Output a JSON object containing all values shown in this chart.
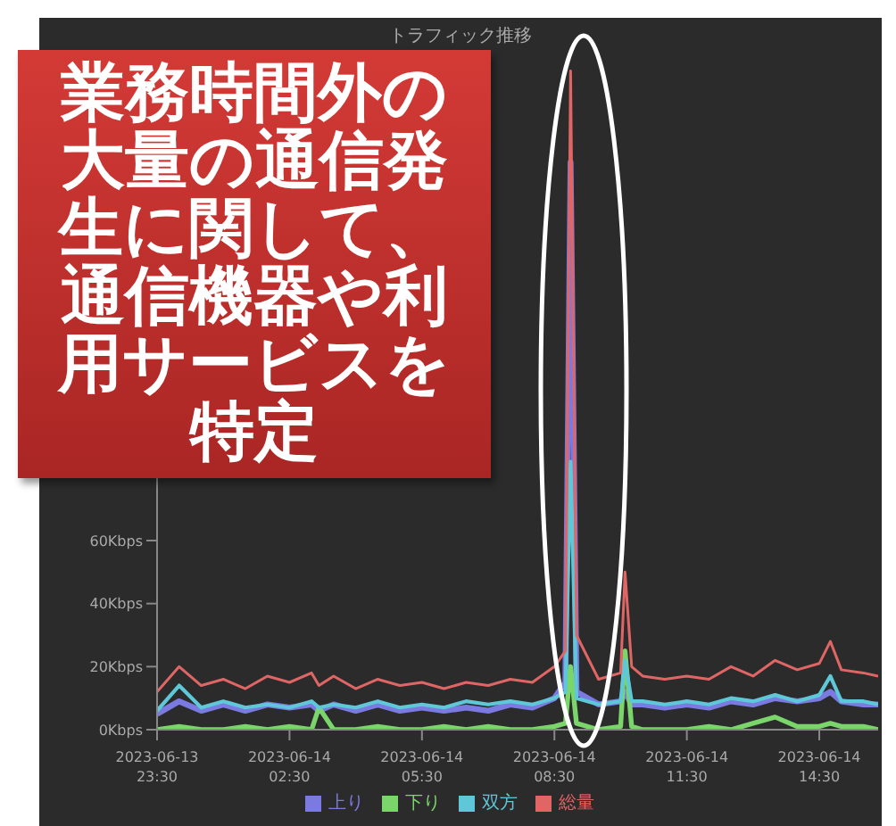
{
  "chart_data": {
    "type": "line",
    "title": "トラフィック推移",
    "x": [
      "2023-06-13T23:30",
      "2023-06-14T00:00",
      "2023-06-14T00:30",
      "2023-06-14T01:00",
      "2023-06-14T01:30",
      "2023-06-14T02:00",
      "2023-06-14T02:30",
      "2023-06-14T03:00",
      "2023-06-14T03:10",
      "2023-06-14T03:30",
      "2023-06-14T04:00",
      "2023-06-14T04:30",
      "2023-06-14T05:00",
      "2023-06-14T05:30",
      "2023-06-14T06:00",
      "2023-06-14T06:30",
      "2023-06-14T07:00",
      "2023-06-14T07:30",
      "2023-06-14T08:00",
      "2023-06-14T08:30",
      "2023-06-14T08:45",
      "2023-06-14T08:52",
      "2023-06-14T09:00",
      "2023-06-14T09:30",
      "2023-06-14T10:00",
      "2023-06-14T10:06",
      "2023-06-14T10:15",
      "2023-06-14T10:30",
      "2023-06-14T11:00",
      "2023-06-14T11:30",
      "2023-06-14T12:00",
      "2023-06-14T12:30",
      "2023-06-14T13:00",
      "2023-06-14T13:30",
      "2023-06-14T14:00",
      "2023-06-14T14:30",
      "2023-06-14T14:45",
      "2023-06-14T15:00",
      "2023-06-14T15:30",
      "2023-06-14T15:50"
    ],
    "series": [
      {
        "name": "上り",
        "color": "#7a7ae0",
        "values": [
          5,
          9,
          6,
          8,
          6,
          8,
          7,
          8,
          6,
          8,
          6,
          8,
          6,
          7,
          6,
          7,
          6,
          8,
          7,
          10,
          15,
          180,
          12,
          8,
          9,
          12,
          8,
          8,
          7,
          8,
          7,
          9,
          8,
          10,
          9,
          10,
          12,
          9,
          8,
          8
        ]
      },
      {
        "name": "下り",
        "color": "#7ad66a",
        "values": [
          0,
          1,
          0,
          0,
          1,
          0,
          1,
          0,
          7,
          0,
          0,
          1,
          0,
          0,
          1,
          0,
          1,
          0,
          0,
          1,
          2,
          20,
          2,
          0,
          1,
          25,
          1,
          0,
          0,
          0,
          1,
          0,
          2,
          4,
          1,
          1,
          2,
          1,
          1,
          0
        ]
      },
      {
        "name": "双方",
        "color": "#5ec8d8",
        "values": [
          6,
          14,
          7,
          9,
          7,
          8,
          7,
          9,
          7,
          8,
          7,
          9,
          7,
          8,
          7,
          9,
          8,
          9,
          8,
          10,
          12,
          85,
          10,
          8,
          9,
          22,
          9,
          9,
          8,
          9,
          8,
          10,
          9,
          11,
          9,
          11,
          17,
          9,
          9,
          8
        ]
      },
      {
        "name": "総量",
        "color": "#e06666",
        "values": [
          12,
          20,
          14,
          16,
          13,
          17,
          15,
          18,
          14,
          17,
          13,
          16,
          14,
          15,
          13,
          15,
          14,
          16,
          15,
          20,
          25,
          209,
          30,
          16,
          18,
          50,
          20,
          17,
          16,
          17,
          16,
          20,
          17,
          22,
          19,
          21,
          28,
          19,
          18,
          17
        ]
      }
    ],
    "xlim": [
      "2023-06-13T23:30",
      "2023-06-14T15:50"
    ],
    "xticks": [
      {
        "value": "2023-06-13T23:30",
        "label": "2023-06-13 23:30"
      },
      {
        "value": "2023-06-14T02:30",
        "label": "2023-06-14 02:30"
      },
      {
        "value": "2023-06-14T05:30",
        "label": "2023-06-14 05:30"
      },
      {
        "value": "2023-06-14T08:30",
        "label": "2023-06-14 08:30"
      },
      {
        "value": "2023-06-14T11:30",
        "label": "2023-06-14 11:30"
      },
      {
        "value": "2023-06-14T14:30",
        "label": "2023-06-14 14:30"
      }
    ],
    "ylim": [
      0,
      210
    ],
    "yticks": [
      {
        "value": 0,
        "label": "0Kbps"
      },
      {
        "value": 20,
        "label": "20Kbps"
      },
      {
        "value": 40,
        "label": "40Kbps"
      },
      {
        "value": 60,
        "label": "60Kbps"
      }
    ],
    "legend": "bottom",
    "annotations": [
      "業務時間外の大量の通信発生に関して、通信機器や利用サービスを特定"
    ]
  }
}
